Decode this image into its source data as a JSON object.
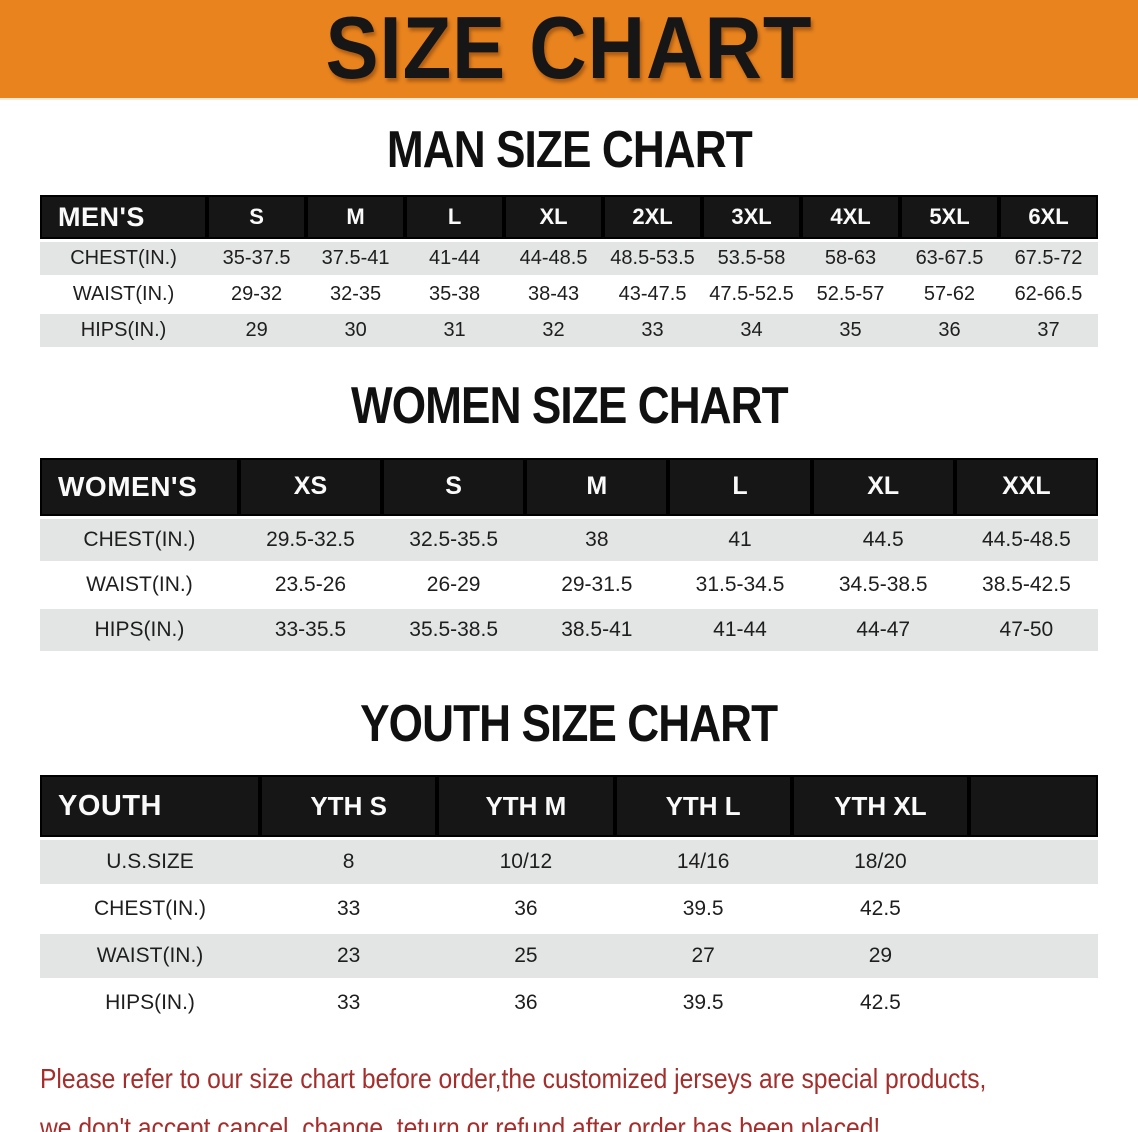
{
  "banner": {
    "title": "SIZE CHART",
    "bg_color": "#E8831E",
    "text_color": "#161616"
  },
  "colors": {
    "header_bar": "#161616",
    "row_stripe": "#E3E4E4",
    "footer_text": "#A42E2C"
  },
  "sections": [
    {
      "title": "MAN SIZE CHART",
      "label": "MEN'S",
      "columns": [
        "S",
        "M",
        "L",
        "XL",
        "2XL",
        "3XL",
        "4XL",
        "5XL",
        "6XL"
      ],
      "rows": [
        {
          "label": "CHEST(IN.)",
          "values": [
            "35-37.5",
            "37.5-41",
            "41-44",
            "44-48.5",
            "48.5-53.5",
            "53.5-58",
            "58-63",
            "63-67.5",
            "67.5-72"
          ]
        },
        {
          "label": "WAIST(IN.)",
          "values": [
            "29-32",
            "32-35",
            "35-38",
            "38-43",
            "43-47.5",
            "47.5-52.5",
            "52.5-57",
            "57-62",
            "62-66.5"
          ]
        },
        {
          "label": "HIPS(IN.)",
          "values": [
            "29",
            "30",
            "31",
            "32",
            "33",
            "34",
            "35",
            "36",
            "37"
          ]
        }
      ]
    },
    {
      "title": "WOMEN SIZE CHART",
      "label": "WOMEN'S",
      "columns": [
        "XS",
        "S",
        "M",
        "L",
        "XL",
        "XXL"
      ],
      "rows": [
        {
          "label": "CHEST(IN.)",
          "values": [
            "29.5-32.5",
            "32.5-35.5",
            "38",
            "41",
            "44.5",
            "44.5-48.5"
          ]
        },
        {
          "label": "WAIST(IN.)",
          "values": [
            "23.5-26",
            "26-29",
            "29-31.5",
            "31.5-34.5",
            "34.5-38.5",
            "38.5-42.5"
          ]
        },
        {
          "label": "HIPS(IN.)",
          "values": [
            "33-35.5",
            "35.5-38.5",
            "38.5-41",
            "41-44",
            "44-47",
            "47-50"
          ]
        }
      ]
    },
    {
      "title": "YOUTH SIZE CHART",
      "label": "YOUTH",
      "columns": [
        "YTH S",
        "YTH M",
        "YTH L",
        "YTH XL"
      ],
      "rows": [
        {
          "label": "U.S.SIZE",
          "values": [
            "8",
            "10/12",
            "14/16",
            "18/20"
          ]
        },
        {
          "label": "CHEST(IN.)",
          "values": [
            "33",
            "36",
            "39.5",
            "42.5"
          ]
        },
        {
          "label": "WAIST(IN.)",
          "values": [
            "23",
            "25",
            "27",
            "29"
          ]
        },
        {
          "label": "HIPS(IN.)",
          "values": [
            "33",
            "36",
            "39.5",
            "42.5"
          ]
        }
      ]
    }
  ],
  "footer": {
    "line1": "Please refer to our size chart before order,the customized jerseys are special products,",
    "line2": "we don't accept cancel, change, teturn or refund after order has been placed!"
  }
}
